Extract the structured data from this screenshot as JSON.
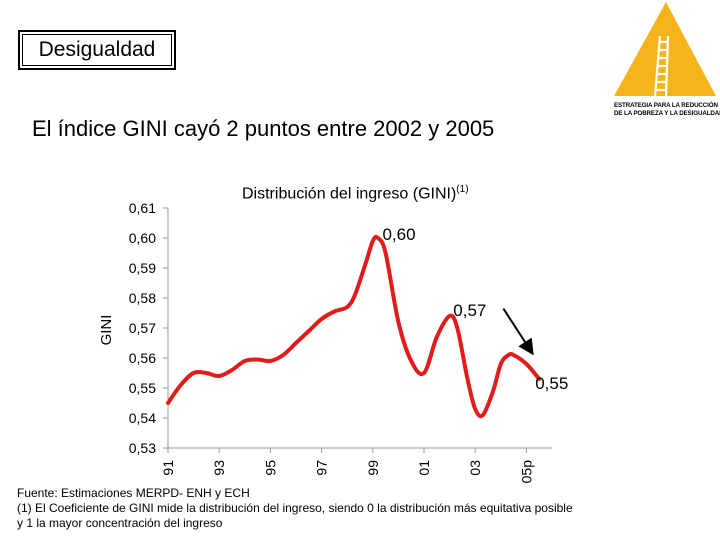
{
  "slide": {
    "title": "Desigualdad",
    "headline": "El índice GINI cayó 2 puntos entre 2002 y 2005"
  },
  "logo": {
    "line1": "ESTRATEGIA PARA LA REDUCCIÓN",
    "line2": "DE LA POBREZA Y LA DESIGUALDAD",
    "color": "#f5b41a"
  },
  "chart_data": {
    "type": "line",
    "title": "Distribución del ingreso (GINI)",
    "title_superscript": "(1)",
    "ylabel": "GINI",
    "xlabel": "",
    "ylim": [
      0.53,
      0.61
    ],
    "yticks": [
      "0,61",
      "0,60",
      "0,59",
      "0,58",
      "0,57",
      "0,56",
      "0,55",
      "0,54",
      "0,53"
    ],
    "ytick_values": [
      0.61,
      0.6,
      0.59,
      0.58,
      0.57,
      0.56,
      0.55,
      0.54,
      0.53
    ],
    "xlim": [
      1991,
      2006
    ],
    "xticks": [
      "91",
      "93",
      "95",
      "97",
      "99",
      "01",
      "03",
      "05p"
    ],
    "xtick_values": [
      1991,
      1993,
      1995,
      1997,
      1999,
      2001,
      2003,
      2005
    ],
    "series": [
      {
        "name": "GINI",
        "color": "#e31b1b",
        "x": [
          1991,
          1991.5,
          1992,
          1992.5,
          1993,
          1993.5,
          1994,
          1994.5,
          1995,
          1995.5,
          1996,
          1996.5,
          1997,
          1997.5,
          1998,
          1998.3,
          1998.7,
          1999,
          1999.2,
          1999.5,
          2000,
          2000.5,
          2001,
          2001.5,
          2002,
          2002.3,
          2002.7,
          2003,
          2003.3,
          2003.7,
          2004,
          2004.3,
          2004.5,
          2005,
          2005.5
        ],
        "values": [
          0.545,
          0.551,
          0.555,
          0.555,
          0.554,
          0.556,
          0.559,
          0.5595,
          0.559,
          0.561,
          0.565,
          0.569,
          0.573,
          0.5755,
          0.577,
          0.581,
          0.591,
          0.599,
          0.6,
          0.595,
          0.572,
          0.559,
          0.555,
          0.567,
          0.574,
          0.57,
          0.553,
          0.543,
          0.541,
          0.549,
          0.558,
          0.561,
          0.561,
          0.558,
          0.553
        ]
      }
    ],
    "annotations": [
      {
        "text": "0,60",
        "x": 1999.3,
        "y": 0.6
      },
      {
        "text": "0,57",
        "x": 2002.3,
        "y": 0.574
      },
      {
        "text": "0,55",
        "x": 2005.5,
        "y": 0.553
      }
    ],
    "arrow": {
      "from": [
        2004.1,
        0.5765
      ],
      "to": [
        2005.2,
        0.562
      ]
    }
  },
  "footnotes": {
    "source": "Fuente: Estimaciones MERPD- ENH y ECH",
    "note_line1": "(1) El Coeficiente de GINI mide la distribución del ingreso, siendo 0 la distribución más equitativa posible",
    "note_line2": "y 1 la mayor concentración del ingreso"
  }
}
